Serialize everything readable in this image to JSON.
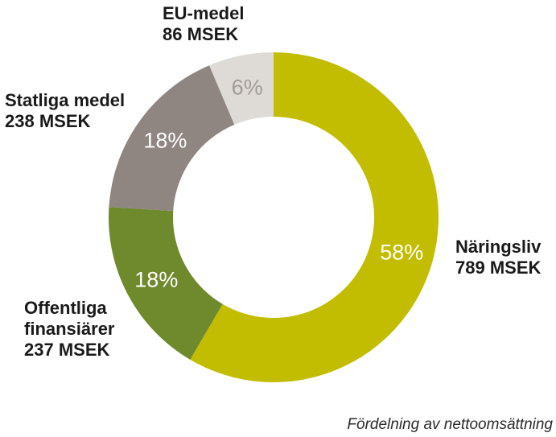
{
  "chart_data": {
    "type": "pie",
    "variant": "donut",
    "caption": "Fördelning av nettoomsättning",
    "unit": "MSEK",
    "slices": [
      {
        "name": "Näringsliv",
        "value": 789,
        "percent_label": "58%",
        "amount_label": "789 MSEK",
        "color": "#c2bd00",
        "pct_color": "#ffffff"
      },
      {
        "name": "Offentliga finansiärer",
        "name_lines": [
          "Offentliga",
          "finansiärer"
        ],
        "value": 237,
        "percent_label": "18%",
        "amount_label": "237 MSEK",
        "color": "#6f8a2c",
        "pct_color": "#ffffff"
      },
      {
        "name": "Statliga medel",
        "value": 238,
        "percent_label": "18%",
        "amount_label": "238 MSEK",
        "color": "#8f8682",
        "pct_color": "#ffffff"
      },
      {
        "name": "EU-medel",
        "value": 86,
        "percent_label": "6%",
        "amount_label": "86 MSEK",
        "color": "#dedbd6",
        "pct_color": "#a19b96"
      }
    ]
  }
}
